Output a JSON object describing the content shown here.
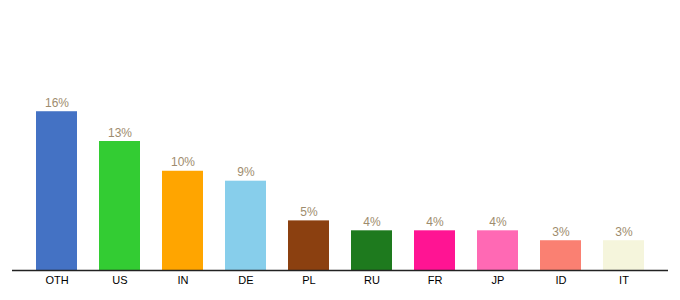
{
  "chart_data": {
    "type": "bar",
    "categories": [
      "OTH",
      "US",
      "IN",
      "DE",
      "PL",
      "RU",
      "FR",
      "JP",
      "ID",
      "IT"
    ],
    "values": [
      16,
      13,
      10,
      9,
      5,
      4,
      4,
      4,
      3,
      3
    ],
    "value_labels": [
      "16%",
      "13%",
      "10%",
      "9%",
      "5%",
      "4%",
      "4%",
      "4%",
      "3%",
      "3%"
    ],
    "colors": [
      "#4472C4",
      "#33CC33",
      "#FFA500",
      "#87CEEB",
      "#8B4010",
      "#1E7A1E",
      "#FF1493",
      "#FF69B4",
      "#FA8072",
      "#F5F5DC"
    ],
    "ylim": [
      0,
      26
    ],
    "data_labels": true,
    "tick_labels": "x",
    "grid": false
  }
}
